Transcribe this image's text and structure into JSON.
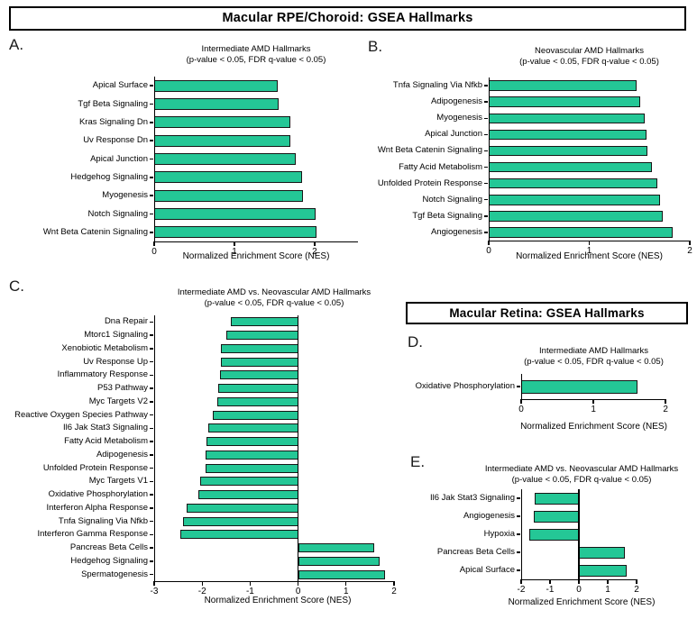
{
  "figure": {
    "banner_rpe_choroid": "Macular RPE/Choroid: GSEA Hallmarks",
    "banner_retina": "Macular Retina: GSEA Hallmarks"
  },
  "colors": {
    "bar_fill": "#24C796",
    "bar_border": "#161616",
    "background": "#FFFFFF",
    "text": "#000000"
  },
  "chart_data": [
    {
      "panel": "A.",
      "type": "bar",
      "orientation": "horizontal",
      "title": "Intermediate AMD Hallmarks",
      "subtitle": "(p-value < 0.05, FDR q-value < 0.05)",
      "xlabel": "Normalized Enrichment Score (NES)",
      "xlim": [
        0,
        2.54
      ],
      "xticks": [
        0,
        1,
        2
      ],
      "grid": false,
      "categories": [
        "Apical Surface",
        "Tgf Beta Signaling",
        "Kras Signaling Dn",
        "Uv Response Dn",
        "Apical Junction",
        "Hedgehog Signaling",
        "Myogenesis",
        "Notch Signaling",
        "Wnt Beta Catenin Signaling"
      ],
      "values": [
        1.54,
        1.55,
        1.7,
        1.7,
        1.76,
        1.84,
        1.86,
        2.01,
        2.02
      ]
    },
    {
      "panel": "B.",
      "type": "bar",
      "orientation": "horizontal",
      "title": "Neovascular AMD Hallmarks",
      "subtitle": "(p-value < 0.05, FDR q-value < 0.05)",
      "xlabel": "Normalized Enrichment Score (NES)",
      "xlim": [
        0,
        2.0
      ],
      "xticks": [
        0,
        1,
        2
      ],
      "grid": false,
      "categories": [
        "Tnfa Signaling Via Nfkb",
        "Adipogenesis",
        "Myogenesis",
        "Apical Junction",
        "Wnt Beta Catenin Signaling",
        "Fatty Acid Metabolism",
        "Unfolded Protein Response",
        "Notch Signaling",
        "Tgf Beta Signaling",
        "Angiogenesis"
      ],
      "values": [
        1.47,
        1.51,
        1.55,
        1.57,
        1.58,
        1.62,
        1.68,
        1.7,
        1.73,
        1.83
      ]
    },
    {
      "panel": "C.",
      "type": "bar",
      "orientation": "horizontal",
      "title": "Intermediate AMD vs. Neovascular AMD Hallmarks",
      "subtitle": "(p-value < 0.05, FDR q-value < 0.05)",
      "xlabel": "Normalized Enrichment Score (NES)",
      "xlim": [
        -3,
        2
      ],
      "xticks": [
        -3,
        -2,
        -1,
        0,
        1,
        2
      ],
      "grid": false,
      "categories": [
        "Dna Repair",
        "Mtorc1 Signaling",
        "Xenobiotic Metabolism",
        "Uv Response Up",
        "Inflammatory Response",
        "P53 Pathway",
        "Myc Targets V2",
        "Reactive Oxygen Species Pathway",
        "Il6 Jak Stat3 Signaling",
        "Fatty Acid Metabolism",
        "Adipogenesis",
        "Unfolded Protein Response",
        "Myc Targets V1",
        "Oxidative Phosphorylation",
        "Interferon Alpha Response",
        "Tnfa Signaling Via Nfkb",
        "Interferon Gamma Response",
        "Pancreas Beta Cells",
        "Hedgehog Signaling",
        "Spermatogenesis"
      ],
      "values": [
        -1.4,
        -1.5,
        -1.61,
        -1.61,
        -1.63,
        -1.67,
        -1.69,
        -1.78,
        -1.87,
        -1.91,
        -1.93,
        -1.93,
        -2.04,
        -2.08,
        -2.32,
        -2.39,
        -2.45,
        1.58,
        1.7,
        1.81
      ]
    },
    {
      "panel": "D.",
      "type": "bar",
      "orientation": "horizontal",
      "title": "Intermediate AMD Hallmarks",
      "subtitle": "(p-value < 0.05, FDR q-value < 0.05)",
      "xlabel": "Normalized Enrichment Score (NES)",
      "xlim": [
        0,
        2.01
      ],
      "xticks": [
        0,
        1,
        2
      ],
      "grid": false,
      "categories": [
        "Oxidative Phosphorylation"
      ],
      "values": [
        1.61
      ]
    },
    {
      "panel": "E.",
      "type": "bar",
      "orientation": "horizontal",
      "title": "Intermediate AMD vs. Neovascular AMD Hallmarks",
      "subtitle": "(p-value < 0.05, FDR q-value < 0.05)",
      "xlabel": "Normalized Enrichment Score (NES)",
      "xlim": [
        -2,
        2
      ],
      "xticks": [
        -2,
        -1,
        0,
        1,
        2
      ],
      "grid": false,
      "categories": [
        "Il6 Jak Stat3 Signaling",
        "Angiogenesis",
        "Hypoxia",
        "Pancreas Beta Cells",
        "Apical Surface"
      ],
      "values": [
        -1.54,
        -1.56,
        -1.72,
        1.59,
        1.66
      ]
    }
  ]
}
